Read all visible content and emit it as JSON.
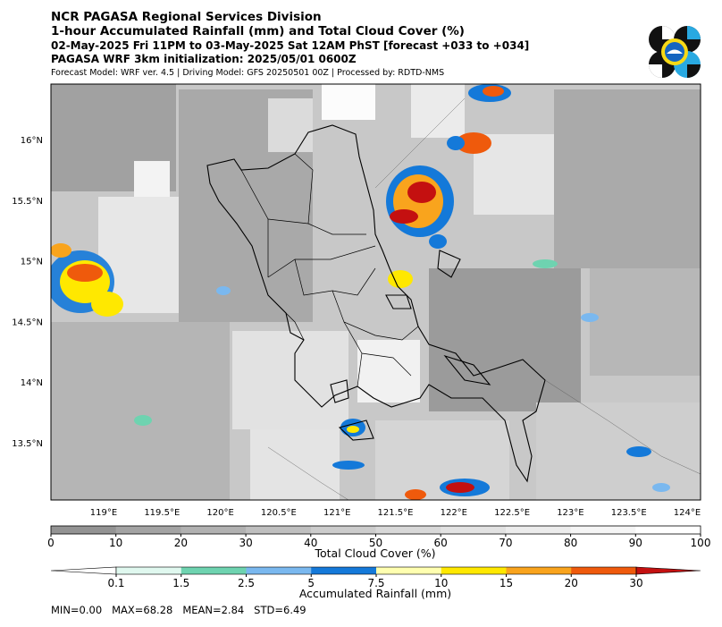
{
  "header": {
    "line1": "NCR PAGASA Regional Services Division",
    "line2": "1-hour Accumulated Rainfall (mm) and Total Cloud Cover (%)",
    "line3": "02-May-2025 Fri 11PM to 03-May-2025 Sat 12AM PhST [forecast +033 to +034]",
    "line4": "PAGASA WRF 3km initialization: 2025/05/01 0600Z",
    "line5": "Forecast Model: WRF ver. 4.5 | Driving Model: GFS 20250501 00Z | Processed by: RDTD-NMS"
  },
  "map": {
    "lon_ticks": [
      "119°E",
      "119.5°E",
      "120°E",
      "120.5°E",
      "121°E",
      "121.5°E",
      "122°E",
      "122.5°E",
      "123°E",
      "123.5°E",
      "124°E"
    ],
    "lat_ticks": [
      "16°N",
      "15.5°N",
      "15°N",
      "14.5°N",
      "14°N",
      "13.5°N"
    ]
  },
  "cloud_bar": {
    "label": "Total Cloud Cover (%)",
    "ticks": [
      "0",
      "10",
      "20",
      "30",
      "40",
      "50",
      "60",
      "70",
      "80",
      "90",
      "100"
    ],
    "colors": [
      "#939393",
      "#a3a3a3",
      "#b1b1b1",
      "#bfbfbf",
      "#cccccc",
      "#d8d8d8",
      "#e2e2e2",
      "#ececec",
      "#f5f5f5",
      "#ffffff"
    ]
  },
  "rain_bar": {
    "label": "Accumulated Rainfall (mm)",
    "ticks": [
      "0.1",
      "1.5",
      "2.5",
      "5",
      "7.5",
      "10",
      "15",
      "20",
      "30"
    ],
    "colors": [
      "#ffffff",
      "#e0f8ef",
      "#6ed3b0",
      "#7ab8ef",
      "#1479d9",
      "#ffffb0",
      "#ffe800",
      "#f9a41d",
      "#ef5a0c",
      "#c41010"
    ]
  },
  "stats": {
    "text": "MIN=0.00   MAX=68.28   MEAN=2.84   STD=6.49"
  }
}
